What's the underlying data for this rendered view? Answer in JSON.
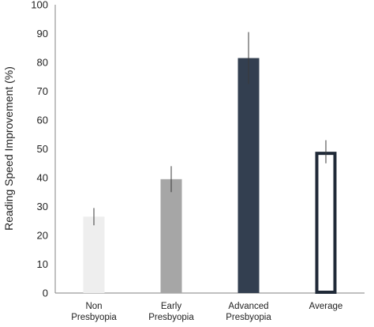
{
  "chart_data": {
    "type": "bar",
    "title": "",
    "xlabel": "",
    "ylabel": "Reading Speed Improvement (%)",
    "ylim": [
      0,
      100
    ],
    "yticks": [
      0,
      10,
      20,
      30,
      40,
      50,
      60,
      70,
      80,
      90,
      100
    ],
    "grid": false,
    "categories": [
      [
        "Non",
        "Presbyopia"
      ],
      [
        "Early",
        "Presbyopia"
      ],
      [
        "Advanced",
        "Presbyopia"
      ],
      [
        "Average"
      ]
    ],
    "values": [
      26.5,
      39.5,
      81.5,
      49
    ],
    "error": [
      3,
      4.5,
      9,
      4
    ],
    "bar_styles": [
      {
        "fill": "#eeeeee",
        "stroke": "none"
      },
      {
        "fill": "#a6a6a6",
        "stroke": "none"
      },
      {
        "fill": "#333f50",
        "stroke": "none"
      },
      {
        "fill": "#ffffff",
        "stroke": "#1f2937"
      }
    ],
    "colors": {
      "axis": "#808080",
      "error_bar": "#3a3a3a",
      "text": "#222222"
    }
  }
}
